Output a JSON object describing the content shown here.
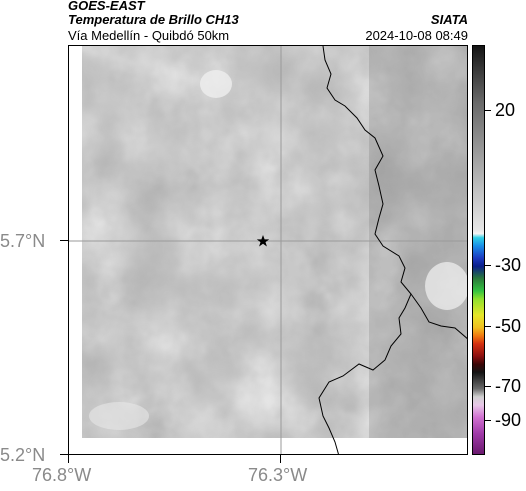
{
  "header": {
    "source": "GOES-EAST",
    "product": "Temperatura de Brillo CH13",
    "organization": "SIATA",
    "region": "Vía Medellín - Quibdó 50km",
    "datetime": "2024-10-08 08:49"
  },
  "map": {
    "y_ticks": [
      "5.7°N",
      "5.2°N"
    ],
    "x_ticks": [
      "76.8°W",
      "76.3°W"
    ],
    "marker": "star-icon",
    "gridlines": true
  },
  "colorbar": {
    "labels": [
      "20",
      "-30",
      "-50",
      "-70",
      "-90"
    ]
  },
  "colors": {
    "frame": "#000000",
    "tick_label": "#8a8a8a",
    "gridline": "#9a9a9a",
    "image_gray": "#b8b8b8"
  }
}
